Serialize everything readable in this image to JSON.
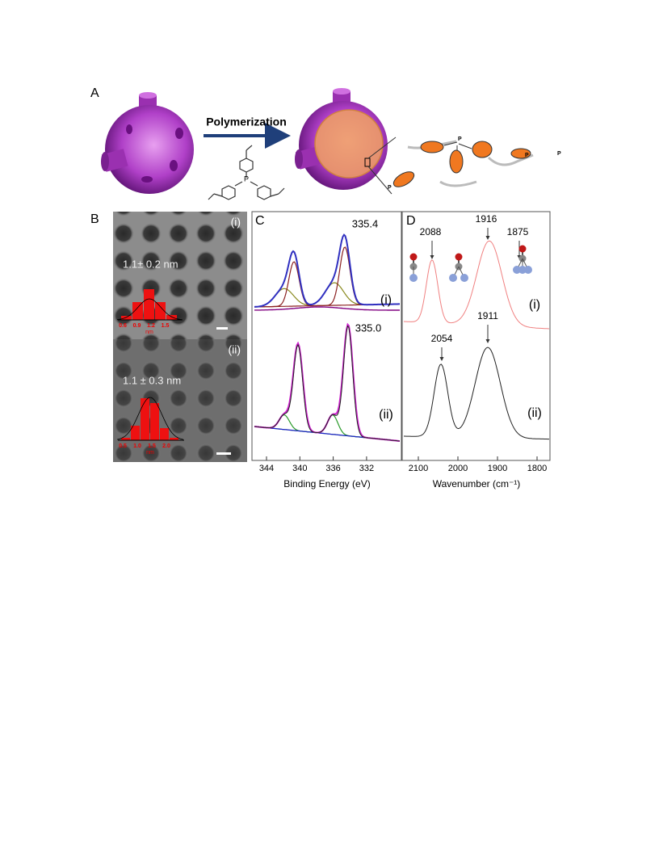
{
  "panels": {
    "A": {
      "label": "A",
      "arrow_label": "Polymerization",
      "monomer_atom": "P",
      "polymer_atoms": [
        "P",
        "P",
        "P",
        "P"
      ]
    },
    "B": {
      "label": "B",
      "images": [
        {
          "tag": "(i)",
          "size": "1.1± 0.2 nm",
          "hist_ticks": [
            "0.6",
            "0.9",
            "1.2",
            "1.5"
          ],
          "hist_unit": "nm"
        },
        {
          "tag": "(ii)",
          "size": "1.1 ± 0.3 nm",
          "hist_ticks": [
            "0.5",
            "1.0",
            "1.5",
            "2.0"
          ],
          "hist_unit": "nm"
        }
      ]
    },
    "C": {
      "label": "C",
      "peaks": [
        "335.4",
        "335.0"
      ],
      "traces": [
        "(i)",
        "(ii)"
      ],
      "x_ticks": [
        "344",
        "340",
        "336",
        "332"
      ],
      "x_label": "Binding Energy (eV)"
    },
    "D": {
      "label": "D",
      "peaks_i": [
        "2088",
        "1916",
        "1875"
      ],
      "peaks_ii": [
        "2054",
        "1911"
      ],
      "traces": [
        "(i)",
        "(ii)"
      ],
      "x_ticks": [
        "2100",
        "2000",
        "1900",
        "1800"
      ],
      "x_label": "Wavenumber (cm⁻¹)"
    }
  }
}
